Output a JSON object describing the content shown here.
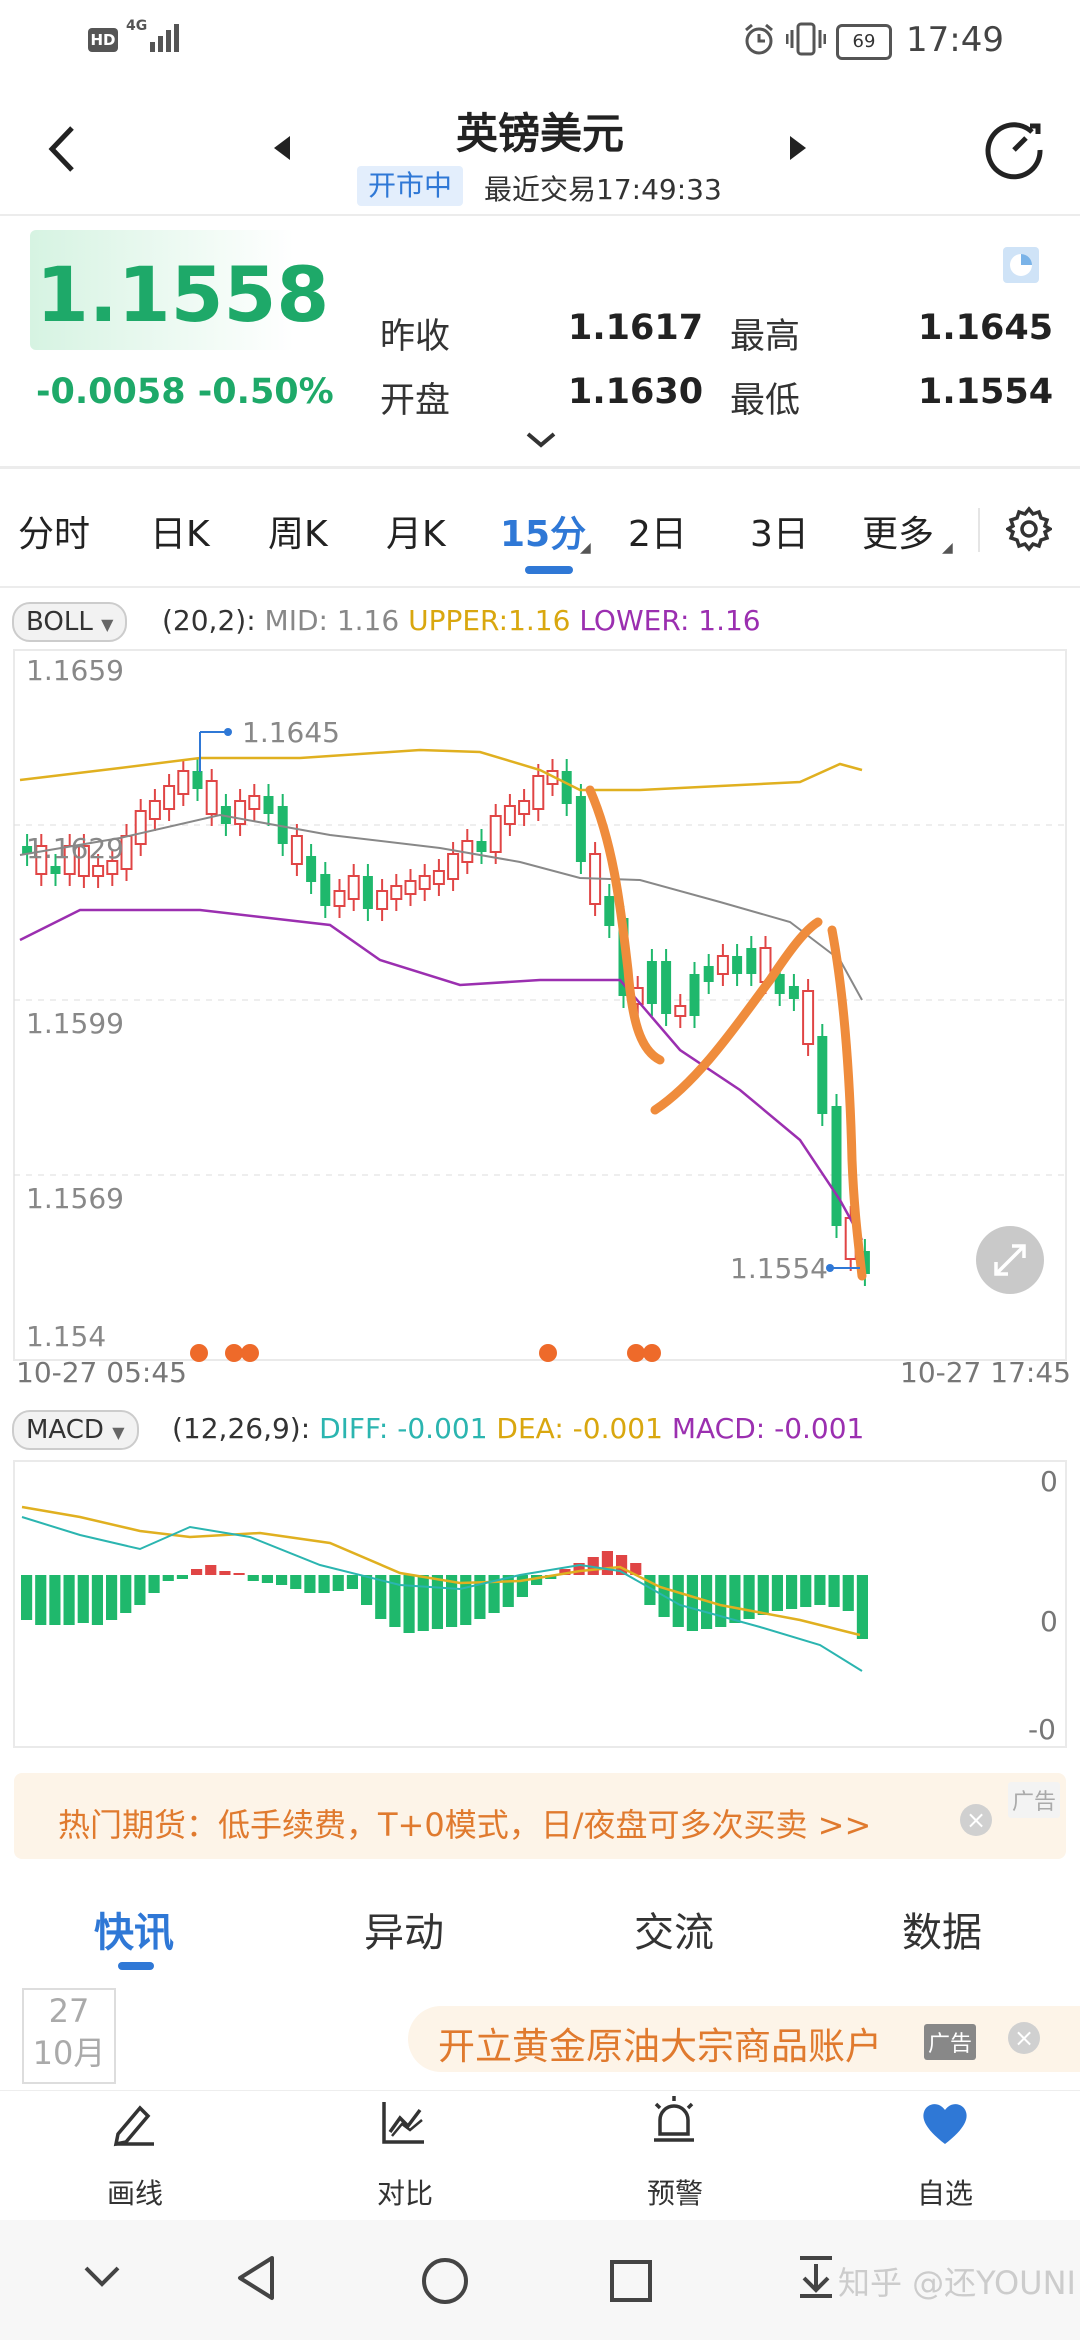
{
  "status_bar": {
    "hd": "HD",
    "network": "4G",
    "battery": "69",
    "time": "17:49"
  },
  "header": {
    "title": "英镑美元",
    "market_status": "开市中",
    "last_trade": "最近交易17:49:33"
  },
  "quote": {
    "price": "1.1558",
    "change": "-0.0058",
    "change_pct": "-0.50%",
    "prev_close_label": "昨收",
    "prev_close": "1.1617",
    "high_label": "最高",
    "high": "1.1645",
    "open_label": "开盘",
    "open": "1.1630",
    "low_label": "最低",
    "low": "1.1554"
  },
  "tabs": [
    {
      "label": "分时"
    },
    {
      "label": "日K"
    },
    {
      "label": "周K"
    },
    {
      "label": "月K"
    },
    {
      "label": "15分"
    },
    {
      "label": "2日"
    },
    {
      "label": "3日"
    },
    {
      "label": "更多"
    }
  ],
  "active_tab": "15分",
  "boll": {
    "name": "BOLL",
    "params": "(20,2):",
    "mid": "MID: 1.16",
    "upper": "UPPER:1.16",
    "lower": "LOWER: 1.16"
  },
  "main_chart": {
    "y_labels": [
      "1.1659",
      "1.1629",
      "1.1599",
      "1.1569",
      "1.154"
    ],
    "x_start": "10-27 05:45",
    "x_end": "10-27 17:45",
    "high_marker": "1.1645",
    "low_marker": "1.1554"
  },
  "macd": {
    "name": "MACD",
    "params": "(12,26,9):",
    "diff": "DIFF: -0.001",
    "dea": "DEA: -0.001",
    "macd": "MACD: -0.001",
    "y_labels": [
      "0",
      "0",
      "-0"
    ]
  },
  "ad_banner": {
    "text": "热门期货：低手续费，T+0模式，日/夜盘可多次买卖 >>",
    "tag": "广告"
  },
  "news_tabs": [
    {
      "label": "快讯"
    },
    {
      "label": "异动"
    },
    {
      "label": "交流"
    },
    {
      "label": "数据"
    }
  ],
  "news_date": {
    "day": "27",
    "month": "10月"
  },
  "ad2": {
    "text": "开立黄金原油大宗商品账户",
    "tag": "广告"
  },
  "toolbar": [
    {
      "label": "画线",
      "icon": "pen-icon"
    },
    {
      "label": "对比",
      "icon": "compare-chart-icon"
    },
    {
      "label": "预警",
      "icon": "alarm-icon"
    },
    {
      "label": "自选",
      "icon": "heart-icon"
    }
  ],
  "watermark": "知乎 @还YOUNI",
  "colors": {
    "up": "#e04545",
    "down": "#1fb86c",
    "accent": "#2f78d6",
    "boll_mid": "#888888",
    "boll_upper": "#e0b020",
    "boll_lower": "#9b2fb0",
    "diff": "#2bb5b0",
    "dea": "#e0b020",
    "annotation": "#ef8c3c"
  }
}
